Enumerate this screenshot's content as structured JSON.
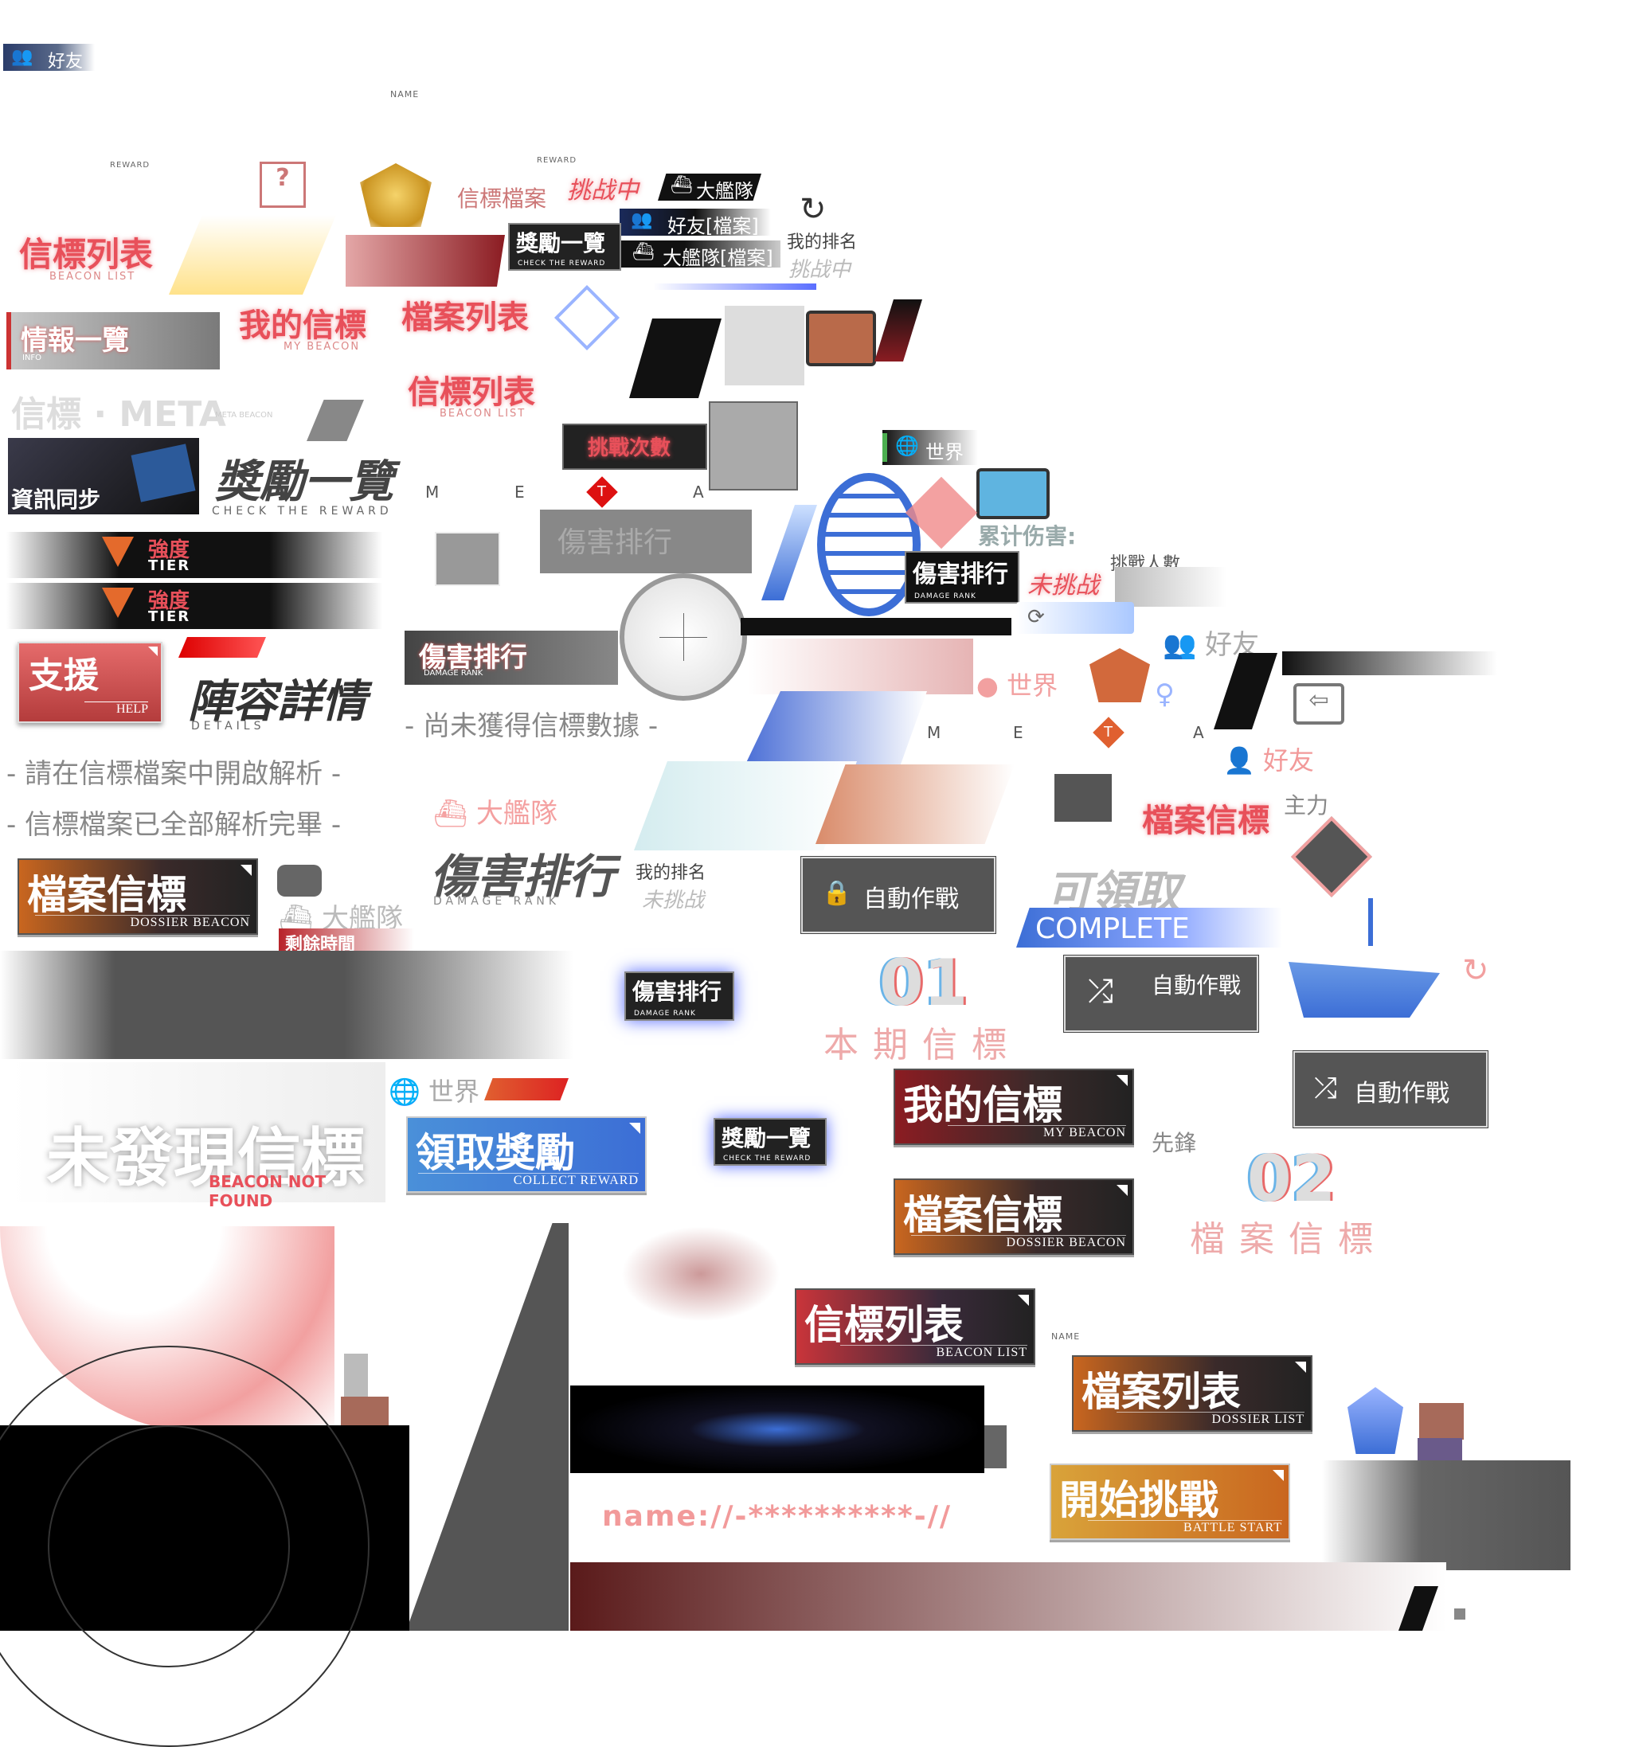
{
  "header": {
    "friend_tab": "好友",
    "name_caption": "NAME",
    "reward_caption": "REWARD"
  },
  "titles": {
    "beacon_list": "信標列表",
    "beacon_list_en": "BEACON LIST",
    "info_list": "情報一覽",
    "info_en": "INFO",
    "my_beacon": "我的信標",
    "my_beacon_en": "MY BEACON",
    "dossier_list": "檔案列表",
    "beacon_list2": "信標列表",
    "beacon_list2_en": "BEACON LIST",
    "beacon_meta": "信標 · META",
    "meta_caption": "META BEACON",
    "sync": "資訊同步",
    "reward_overview": "獎勵一覽",
    "reward_overview_en": "CHECK THE REWARD",
    "beacon_dossier": "信標檔案",
    "challenging": "挑战中",
    "big_fleet": "大艦隊",
    "friend_dossier": "好友[檔案]",
    "fleet_dossier": "大艦隊[檔案]",
    "my_rank": "我的排名",
    "challenging2": "挑战中",
    "challenge_count": "挑戰次數",
    "world": "世界",
    "damage_rank": "傷害排行",
    "damage_rank_en": "DAMAGE RANK",
    "total_damage": "累计伤害:",
    "not_challenged": "未挑战",
    "challenger_count": "挑戰人數",
    "difficulty": "強度",
    "tier": "TIER",
    "help": "支援",
    "help_en": "HELP",
    "lineup_detail": "陣容詳情",
    "details_en": "DETAILS",
    "no_data": "- 尚未獲得信標數據 -",
    "open_hint": "- 請在信標檔案中開啟解析 -",
    "all_done": "- 信標檔案已全部解析完畢 -",
    "fleet_label": "大艦隊",
    "dossier_beacon": "檔案信標",
    "dossier_beacon_en": "DOSSIER BEACON",
    "remaining_time": "剩餘時間",
    "damage_rank_big": "傷害排行",
    "damage_rank_big_en": "DAMAGE RANK",
    "my_rank2": "我的排名",
    "not_challenged2": "未挑战",
    "auto_battle": "自動作戰",
    "claimable": "可領取",
    "complete": "COMPLETE",
    "main_force": "主力",
    "file_beacon_pink": "檔案信標",
    "friend2": "好友",
    "world2": "世界",
    "meta_letters": [
      "M",
      "E",
      "T",
      "A"
    ],
    "num01": "01",
    "this_period": "本期信標",
    "num02": "02",
    "file_beacon_period": "檔案信標",
    "vanguard": "先鋒",
    "not_found": "未發現信標",
    "not_found_en": "BEACON NOT FOUND",
    "collect": "領取獎勵",
    "collect_en": "COLLECT REWARD",
    "my_beacon_card": "我的信標",
    "dossier_card": "檔案信標",
    "beacon_list_card": "信標列表",
    "dossier_list_card": "檔案列表",
    "dossier_list_en": "DOSSIER LIST",
    "battle_start": "開始挑戰",
    "battle_start_en": "BATTLE START",
    "name_pattern": "name://-**********-//",
    "help_icon_text": "HELP"
  },
  "colors": {
    "accent_red": "#e8505a",
    "card_red": "#7a1e25",
    "card_blue": "#3c7be0",
    "card_gold": "#c99a3a",
    "card_orange": "#b5662e",
    "dark": "#222222"
  }
}
